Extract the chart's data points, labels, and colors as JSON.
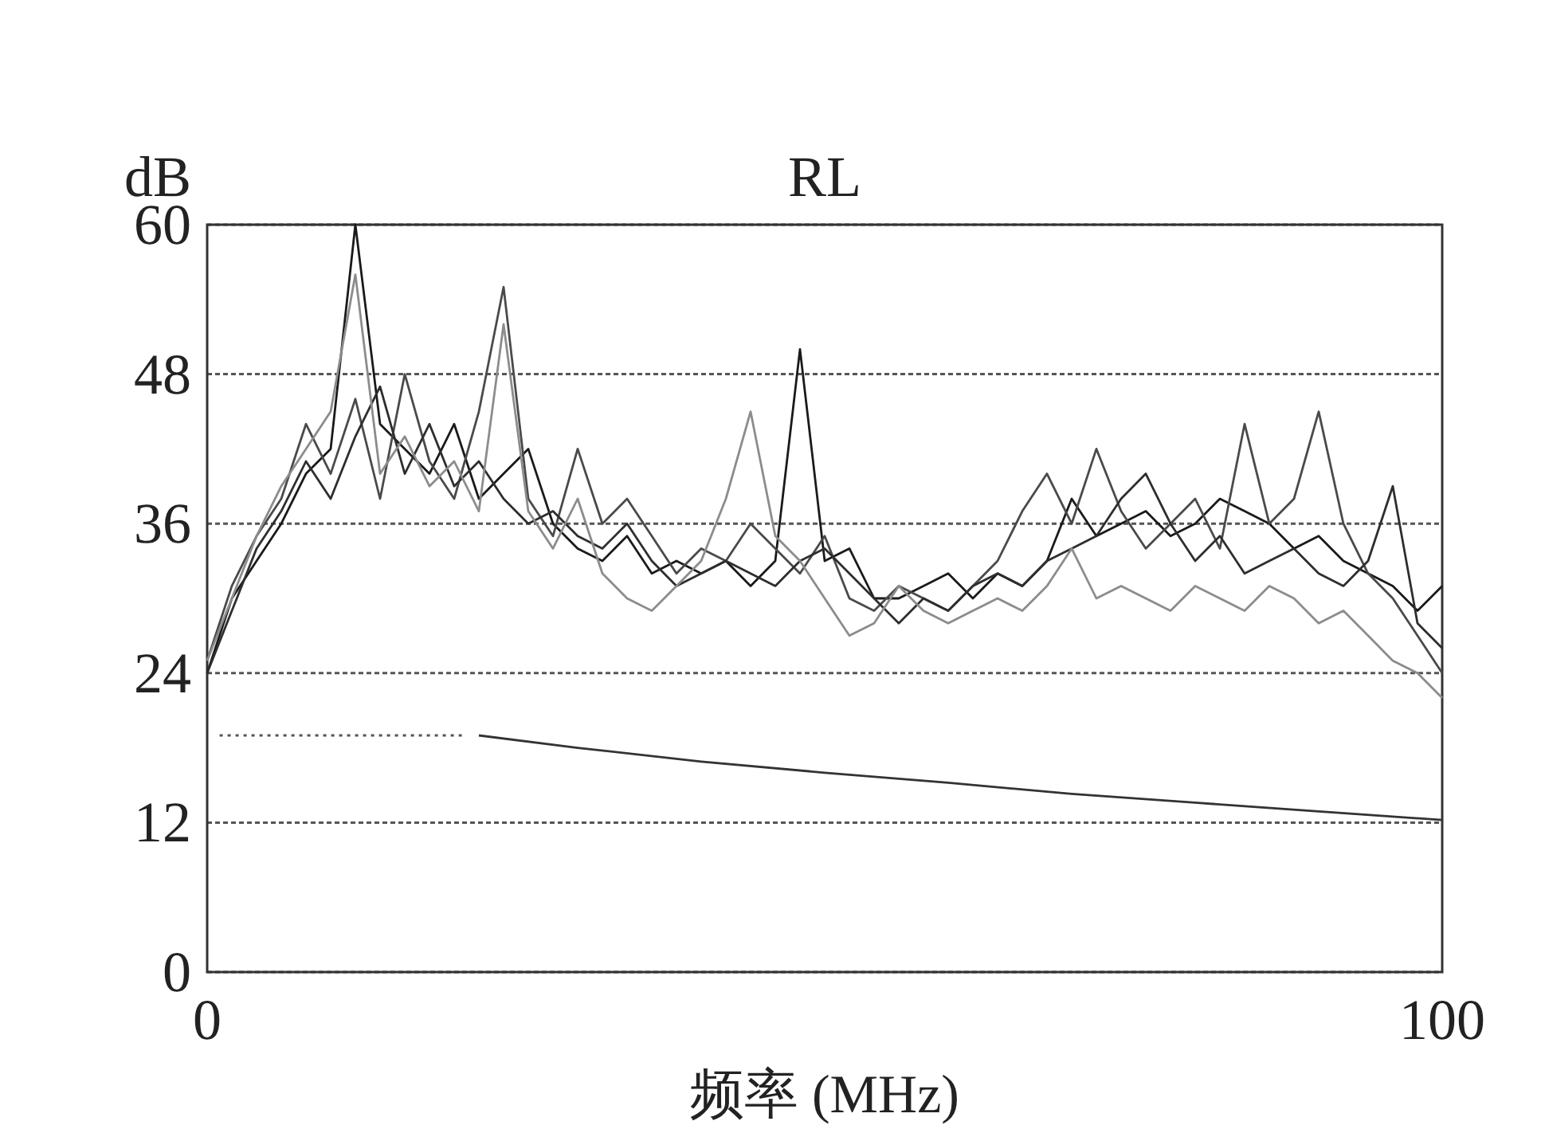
{
  "chart_data": {
    "type": "line",
    "title": "RL",
    "ylabel": "dB",
    "xlabel": "频率 (MHz)",
    "xlim": [
      0,
      100
    ],
    "ylim": [
      0,
      60
    ],
    "xticks": [
      0,
      100
    ],
    "yticks": [
      0,
      12,
      24,
      36,
      48,
      60
    ],
    "grid": "y",
    "series": [
      {
        "color": "#1a1a1a",
        "line_style": "solid",
        "x": [
          0,
          2,
          4,
          6,
          8,
          10,
          12,
          14,
          16,
          18,
          20,
          22,
          24,
          26,
          28,
          30,
          32,
          34,
          36,
          38,
          40,
          42,
          44,
          46,
          48,
          50,
          52,
          54,
          56,
          58,
          60,
          62,
          64,
          66,
          68,
          70,
          72,
          74,
          76,
          78,
          80,
          82,
          84,
          86,
          88,
          90,
          92,
          94,
          96,
          98,
          100
        ],
        "values": [
          24,
          30,
          33,
          36,
          40,
          42,
          60,
          44,
          42,
          40,
          44,
          38,
          40,
          42,
          36,
          34,
          33,
          35,
          32,
          33,
          32,
          33,
          31,
          33,
          50,
          33,
          34,
          30,
          30,
          31,
          32,
          30,
          32,
          31,
          33,
          38,
          35,
          36,
          37,
          35,
          36,
          38,
          37,
          36,
          34,
          35,
          33,
          32,
          31,
          29,
          31
        ]
      },
      {
        "color": "#4a4a4a",
        "line_style": "solid",
        "x": [
          0,
          2,
          4,
          6,
          8,
          10,
          12,
          14,
          16,
          18,
          20,
          22,
          24,
          26,
          28,
          30,
          32,
          34,
          36,
          38,
          40,
          42,
          44,
          46,
          48,
          50,
          52,
          54,
          56,
          58,
          60,
          62,
          64,
          66,
          68,
          70,
          72,
          74,
          76,
          78,
          80,
          82,
          84,
          86,
          88,
          90,
          92,
          94,
          96,
          98,
          100
        ],
        "values": [
          25,
          31,
          35,
          38,
          44,
          40,
          46,
          38,
          48,
          41,
          38,
          45,
          55,
          38,
          35,
          42,
          36,
          38,
          35,
          32,
          34,
          33,
          36,
          34,
          32,
          35,
          30,
          29,
          31,
          30,
          29,
          31,
          33,
          37,
          40,
          36,
          42,
          37,
          34,
          36,
          38,
          34,
          44,
          36,
          38,
          45,
          36,
          32,
          30,
          27,
          24
        ]
      },
      {
        "color": "#2e2e2e",
        "line_style": "solid",
        "x": [
          0,
          2,
          4,
          6,
          8,
          10,
          12,
          14,
          16,
          18,
          20,
          22,
          24,
          26,
          28,
          30,
          32,
          34,
          36,
          38,
          40,
          42,
          44,
          46,
          48,
          50,
          52,
          54,
          56,
          58,
          60,
          62,
          64,
          66,
          68,
          70,
          72,
          74,
          76,
          78,
          80,
          82,
          84,
          86,
          88,
          90,
          92,
          94,
          96,
          98,
          100
        ],
        "values": [
          24,
          29,
          34,
          37,
          41,
          38,
          43,
          47,
          40,
          44,
          39,
          41,
          38,
          36,
          37,
          35,
          34,
          36,
          33,
          31,
          32,
          33,
          32,
          31,
          33,
          34,
          32,
          30,
          28,
          30,
          29,
          31,
          32,
          31,
          33,
          34,
          35,
          38,
          40,
          36,
          33,
          35,
          32,
          33,
          34,
          32,
          31,
          33,
          39,
          28,
          26
        ]
      },
      {
        "color": "#8c8c8c",
        "line_style": "solid",
        "x": [
          0,
          2,
          4,
          6,
          8,
          10,
          12,
          14,
          16,
          18,
          20,
          22,
          24,
          26,
          28,
          30,
          32,
          34,
          36,
          38,
          40,
          42,
          44,
          46,
          48,
          50,
          52,
          54,
          56,
          58,
          60,
          62,
          64,
          66,
          68,
          70,
          72,
          74,
          76,
          78,
          80,
          82,
          84,
          86,
          88,
          90,
          92,
          94,
          96,
          98,
          100
        ],
        "values": [
          25,
          30,
          35,
          39,
          42,
          45,
          56,
          40,
          43,
          39,
          41,
          37,
          52,
          37,
          34,
          38,
          32,
          30,
          29,
          31,
          33,
          38,
          45,
          35,
          33,
          30,
          27,
          28,
          31,
          29,
          28,
          29,
          30,
          29,
          31,
          34,
          30,
          31,
          30,
          29,
          31,
          30,
          29,
          31,
          30,
          28,
          29,
          27,
          25,
          24,
          22
        ]
      },
      {
        "color": "#555555",
        "line_style": "dotted",
        "x": [
          1,
          21
        ],
        "values": [
          19,
          19
        ]
      },
      {
        "color": "#333333",
        "line_style": "solid",
        "x": [
          22,
          30,
          40,
          50,
          60,
          70,
          80,
          90,
          100
        ],
        "values": [
          19,
          18,
          16.9,
          16,
          15.2,
          14.3,
          13.6,
          12.9,
          12.2
        ]
      }
    ]
  }
}
